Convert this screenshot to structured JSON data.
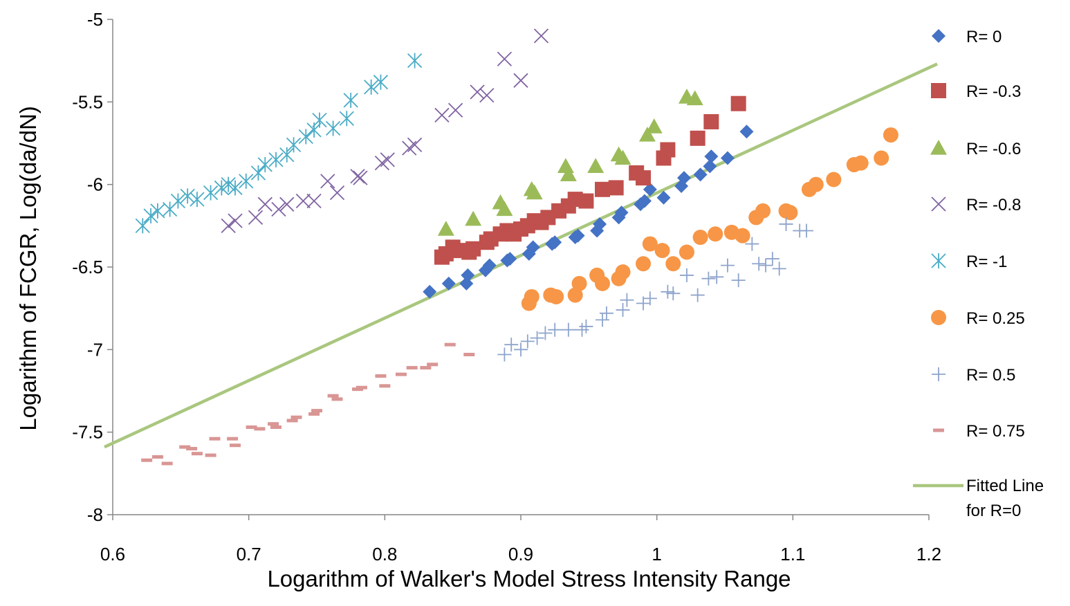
{
  "chart_data": {
    "type": "scatter",
    "title": "",
    "xlabel": "Logarithm of Walker's Model Stress Intensity Range",
    "ylabel": "Logarithm of FCGR,  Log(da/dN)",
    "xlim": [
      0.6,
      1.2
    ],
    "ylim": [
      -8,
      -5
    ],
    "x_ticks": [
      0.6,
      0.7,
      0.8,
      0.9,
      1.0,
      1.1,
      1.2
    ],
    "x_tick_labels": [
      "0.6",
      "0.7",
      "0.8",
      "0.9",
      "1",
      "1.1",
      "1.2"
    ],
    "y_ticks": [
      -5,
      -5.5,
      -6,
      -6.5,
      -7,
      -7.5,
      -8
    ],
    "y_tick_labels": [
      "-5",
      "-5.5",
      "-6",
      "-6.5",
      "-7",
      "-7.5",
      "-8"
    ],
    "grid": false,
    "legend_position": "right",
    "series": [
      {
        "name": "R= 0",
        "marker": "diamond",
        "color": "#4472C4",
        "points": [
          [
            0.833,
            -6.65
          ],
          [
            0.847,
            -6.6
          ],
          [
            0.86,
            -6.6
          ],
          [
            0.861,
            -6.55
          ],
          [
            0.874,
            -6.52
          ],
          [
            0.877,
            -6.49
          ],
          [
            0.89,
            -6.46
          ],
          [
            0.892,
            -6.45
          ],
          [
            0.906,
            -6.42
          ],
          [
            0.909,
            -6.38
          ],
          [
            0.923,
            -6.36
          ],
          [
            0.925,
            -6.35
          ],
          [
            0.94,
            -6.32
          ],
          [
            0.942,
            -6.31
          ],
          [
            0.956,
            -6.28
          ],
          [
            0.958,
            -6.24
          ],
          [
            0.972,
            -6.2
          ],
          [
            0.974,
            -6.17
          ],
          [
            0.988,
            -6.12
          ],
          [
            0.991,
            -6.1
          ],
          [
            0.995,
            -6.03
          ],
          [
            1.005,
            -6.08
          ],
          [
            1.018,
            -6.01
          ],
          [
            1.02,
            -5.96
          ],
          [
            1.032,
            -5.94
          ],
          [
            1.039,
            -5.89
          ],
          [
            1.04,
            -5.83
          ],
          [
            1.052,
            -5.84
          ],
          [
            1.066,
            -5.68
          ]
        ]
      },
      {
        "name": "R= -0.3",
        "marker": "square",
        "color": "#C0504D",
        "points": [
          [
            0.842,
            -6.44
          ],
          [
            0.845,
            -6.42
          ],
          [
            0.85,
            -6.38
          ],
          [
            0.855,
            -6.4
          ],
          [
            0.862,
            -6.41
          ],
          [
            0.865,
            -6.39
          ],
          [
            0.875,
            -6.35
          ],
          [
            0.878,
            -6.33
          ],
          [
            0.885,
            -6.3
          ],
          [
            0.89,
            -6.28
          ],
          [
            0.895,
            -6.3
          ],
          [
            0.9,
            -6.27
          ],
          [
            0.905,
            -6.25
          ],
          [
            0.91,
            -6.22
          ],
          [
            0.915,
            -6.23
          ],
          [
            0.92,
            -6.2
          ],
          [
            0.928,
            -6.16
          ],
          [
            0.935,
            -6.13
          ],
          [
            0.94,
            -6.09
          ],
          [
            0.948,
            -6.1
          ],
          [
            0.96,
            -6.03
          ],
          [
            0.97,
            -6.02
          ],
          [
            0.985,
            -5.93
          ],
          [
            0.99,
            -5.96
          ],
          [
            1.005,
            -5.84
          ],
          [
            1.008,
            -5.79
          ],
          [
            1.03,
            -5.72
          ],
          [
            1.04,
            -5.62
          ],
          [
            1.06,
            -5.51
          ]
        ]
      },
      {
        "name": "R= -0.6",
        "marker": "triangle",
        "color": "#9BBB59",
        "points": [
          [
            0.845,
            -6.27
          ],
          [
            0.865,
            -6.21
          ],
          [
            0.885,
            -6.11
          ],
          [
            0.888,
            -6.15
          ],
          [
            0.908,
            -6.03
          ],
          [
            0.91,
            -6.05
          ],
          [
            0.933,
            -5.89
          ],
          [
            0.935,
            -5.94
          ],
          [
            0.955,
            -5.89
          ],
          [
            0.972,
            -5.82
          ],
          [
            0.975,
            -5.84
          ],
          [
            0.993,
            -5.7
          ],
          [
            0.998,
            -5.65
          ],
          [
            1.022,
            -5.47
          ],
          [
            1.028,
            -5.48
          ]
        ]
      },
      {
        "name": "R= -0.8",
        "marker": "x",
        "color": "#8064A2",
        "points": [
          [
            0.685,
            -6.25
          ],
          [
            0.69,
            -6.22
          ],
          [
            0.705,
            -6.2
          ],
          [
            0.712,
            -6.12
          ],
          [
            0.722,
            -6.15
          ],
          [
            0.728,
            -6.12
          ],
          [
            0.74,
            -6.1
          ],
          [
            0.748,
            -6.1
          ],
          [
            0.758,
            -5.98
          ],
          [
            0.765,
            -6.05
          ],
          [
            0.78,
            -5.95
          ],
          [
            0.782,
            -5.96
          ],
          [
            0.798,
            -5.87
          ],
          [
            0.802,
            -5.85
          ],
          [
            0.818,
            -5.78
          ],
          [
            0.822,
            -5.76
          ],
          [
            0.842,
            -5.58
          ],
          [
            0.852,
            -5.55
          ],
          [
            0.868,
            -5.44
          ],
          [
            0.875,
            -5.46
          ],
          [
            0.888,
            -5.24
          ],
          [
            0.9,
            -5.37
          ],
          [
            0.915,
            -5.1
          ]
        ]
      },
      {
        "name": "R= -1",
        "marker": "asterisk",
        "color": "#4BACC6",
        "points": [
          [
            0.622,
            -6.25
          ],
          [
            0.628,
            -6.19
          ],
          [
            0.633,
            -6.16
          ],
          [
            0.642,
            -6.15
          ],
          [
            0.648,
            -6.1
          ],
          [
            0.655,
            -6.07
          ],
          [
            0.662,
            -6.09
          ],
          [
            0.672,
            -6.05
          ],
          [
            0.68,
            -6.02
          ],
          [
            0.685,
            -6.0
          ],
          [
            0.69,
            -6.02
          ],
          [
            0.698,
            -5.98
          ],
          [
            0.707,
            -5.93
          ],
          [
            0.712,
            -5.88
          ],
          [
            0.72,
            -5.85
          ],
          [
            0.728,
            -5.82
          ],
          [
            0.733,
            -5.76
          ],
          [
            0.742,
            -5.71
          ],
          [
            0.748,
            -5.67
          ],
          [
            0.752,
            -5.61
          ],
          [
            0.762,
            -5.66
          ],
          [
            0.772,
            -5.6
          ],
          [
            0.775,
            -5.49
          ],
          [
            0.79,
            -5.41
          ],
          [
            0.797,
            -5.38
          ],
          [
            0.822,
            -5.25
          ]
        ]
      },
      {
        "name": "R= 0.25",
        "marker": "circle",
        "color": "#F79646",
        "points": [
          [
            0.906,
            -6.72
          ],
          [
            0.908,
            -6.68
          ],
          [
            0.922,
            -6.67
          ],
          [
            0.926,
            -6.68
          ],
          [
            0.94,
            -6.67
          ],
          [
            0.943,
            -6.6
          ],
          [
            0.956,
            -6.55
          ],
          [
            0.96,
            -6.6
          ],
          [
            0.972,
            -6.57
          ],
          [
            0.975,
            -6.53
          ],
          [
            0.99,
            -6.48
          ],
          [
            0.995,
            -6.36
          ],
          [
            1.004,
            -6.4
          ],
          [
            1.012,
            -6.48
          ],
          [
            1.022,
            -6.41
          ],
          [
            1.032,
            -6.32
          ],
          [
            1.043,
            -6.3
          ],
          [
            1.055,
            -6.29
          ],
          [
            1.063,
            -6.31
          ],
          [
            1.073,
            -6.2
          ],
          [
            1.078,
            -6.16
          ],
          [
            1.095,
            -6.16
          ],
          [
            1.098,
            -6.17
          ],
          [
            1.112,
            -6.03
          ],
          [
            1.117,
            -6.0
          ],
          [
            1.13,
            -5.97
          ],
          [
            1.145,
            -5.88
          ],
          [
            1.15,
            -5.87
          ],
          [
            1.165,
            -5.84
          ],
          [
            1.172,
            -5.7
          ]
        ]
      },
      {
        "name": "R= 0.5",
        "marker": "plus",
        "color": "#8EA4CC",
        "points": [
          [
            0.888,
            -7.03
          ],
          [
            0.893,
            -6.97
          ],
          [
            0.9,
            -7.0
          ],
          [
            0.905,
            -6.95
          ],
          [
            0.912,
            -6.93
          ],
          [
            0.918,
            -6.9
          ],
          [
            0.925,
            -6.88
          ],
          [
            0.935,
            -6.88
          ],
          [
            0.945,
            -6.88
          ],
          [
            0.948,
            -6.86
          ],
          [
            0.96,
            -6.82
          ],
          [
            0.963,
            -6.78
          ],
          [
            0.975,
            -6.76
          ],
          [
            0.978,
            -6.7
          ],
          [
            0.99,
            -6.72
          ],
          [
            0.995,
            -6.69
          ],
          [
            1.008,
            -6.65
          ],
          [
            1.012,
            -6.66
          ],
          [
            1.022,
            -6.55
          ],
          [
            1.03,
            -6.67
          ],
          [
            1.038,
            -6.57
          ],
          [
            1.044,
            -6.56
          ],
          [
            1.052,
            -6.49
          ],
          [
            1.06,
            -6.58
          ],
          [
            1.07,
            -6.36
          ],
          [
            1.075,
            -6.48
          ],
          [
            1.08,
            -6.49
          ],
          [
            1.085,
            -6.45
          ],
          [
            1.09,
            -6.51
          ],
          [
            1.095,
            -6.24
          ],
          [
            1.105,
            -6.28
          ],
          [
            1.11,
            -6.28
          ]
        ]
      },
      {
        "name": "R= 0.75",
        "marker": "dash",
        "color": "#D99694",
        "points": [
          [
            0.625,
            -7.67
          ],
          [
            0.633,
            -7.65
          ],
          [
            0.64,
            -7.69
          ],
          [
            0.653,
            -7.59
          ],
          [
            0.658,
            -7.6
          ],
          [
            0.662,
            -7.63
          ],
          [
            0.672,
            -7.64
          ],
          [
            0.675,
            -7.54
          ],
          [
            0.688,
            -7.54
          ],
          [
            0.69,
            -7.58
          ],
          [
            0.702,
            -7.47
          ],
          [
            0.708,
            -7.48
          ],
          [
            0.718,
            -7.45
          ],
          [
            0.72,
            -7.47
          ],
          [
            0.732,
            -7.43
          ],
          [
            0.735,
            -7.41
          ],
          [
            0.748,
            -7.39
          ],
          [
            0.75,
            -7.37
          ],
          [
            0.762,
            -7.28
          ],
          [
            0.765,
            -7.3
          ],
          [
            0.78,
            -7.24
          ],
          [
            0.783,
            -7.23
          ],
          [
            0.797,
            -7.16
          ],
          [
            0.8,
            -7.22
          ],
          [
            0.812,
            -7.15
          ],
          [
            0.82,
            -7.11
          ],
          [
            0.83,
            -7.11
          ],
          [
            0.835,
            -7.09
          ],
          [
            0.848,
            -6.97
          ],
          [
            0.862,
            -7.03
          ]
        ]
      },
      {
        "name": "Fitted Line\nfor R=0",
        "marker": "line",
        "color": "#A9C77E",
        "points": [
          [
            0.6,
            -7.59
          ],
          [
            1.2,
            -5.27
          ]
        ]
      }
    ]
  },
  "legend": {
    "entries": [
      "R= 0",
      "R= -0.3",
      "R= -0.6",
      "R= -0.8",
      "R= -1",
      "R= 0.25",
      "R= 0.5",
      "R= 0.75"
    ],
    "fitted_line_1": "Fitted Line",
    "fitted_line_2": "for R=0"
  }
}
